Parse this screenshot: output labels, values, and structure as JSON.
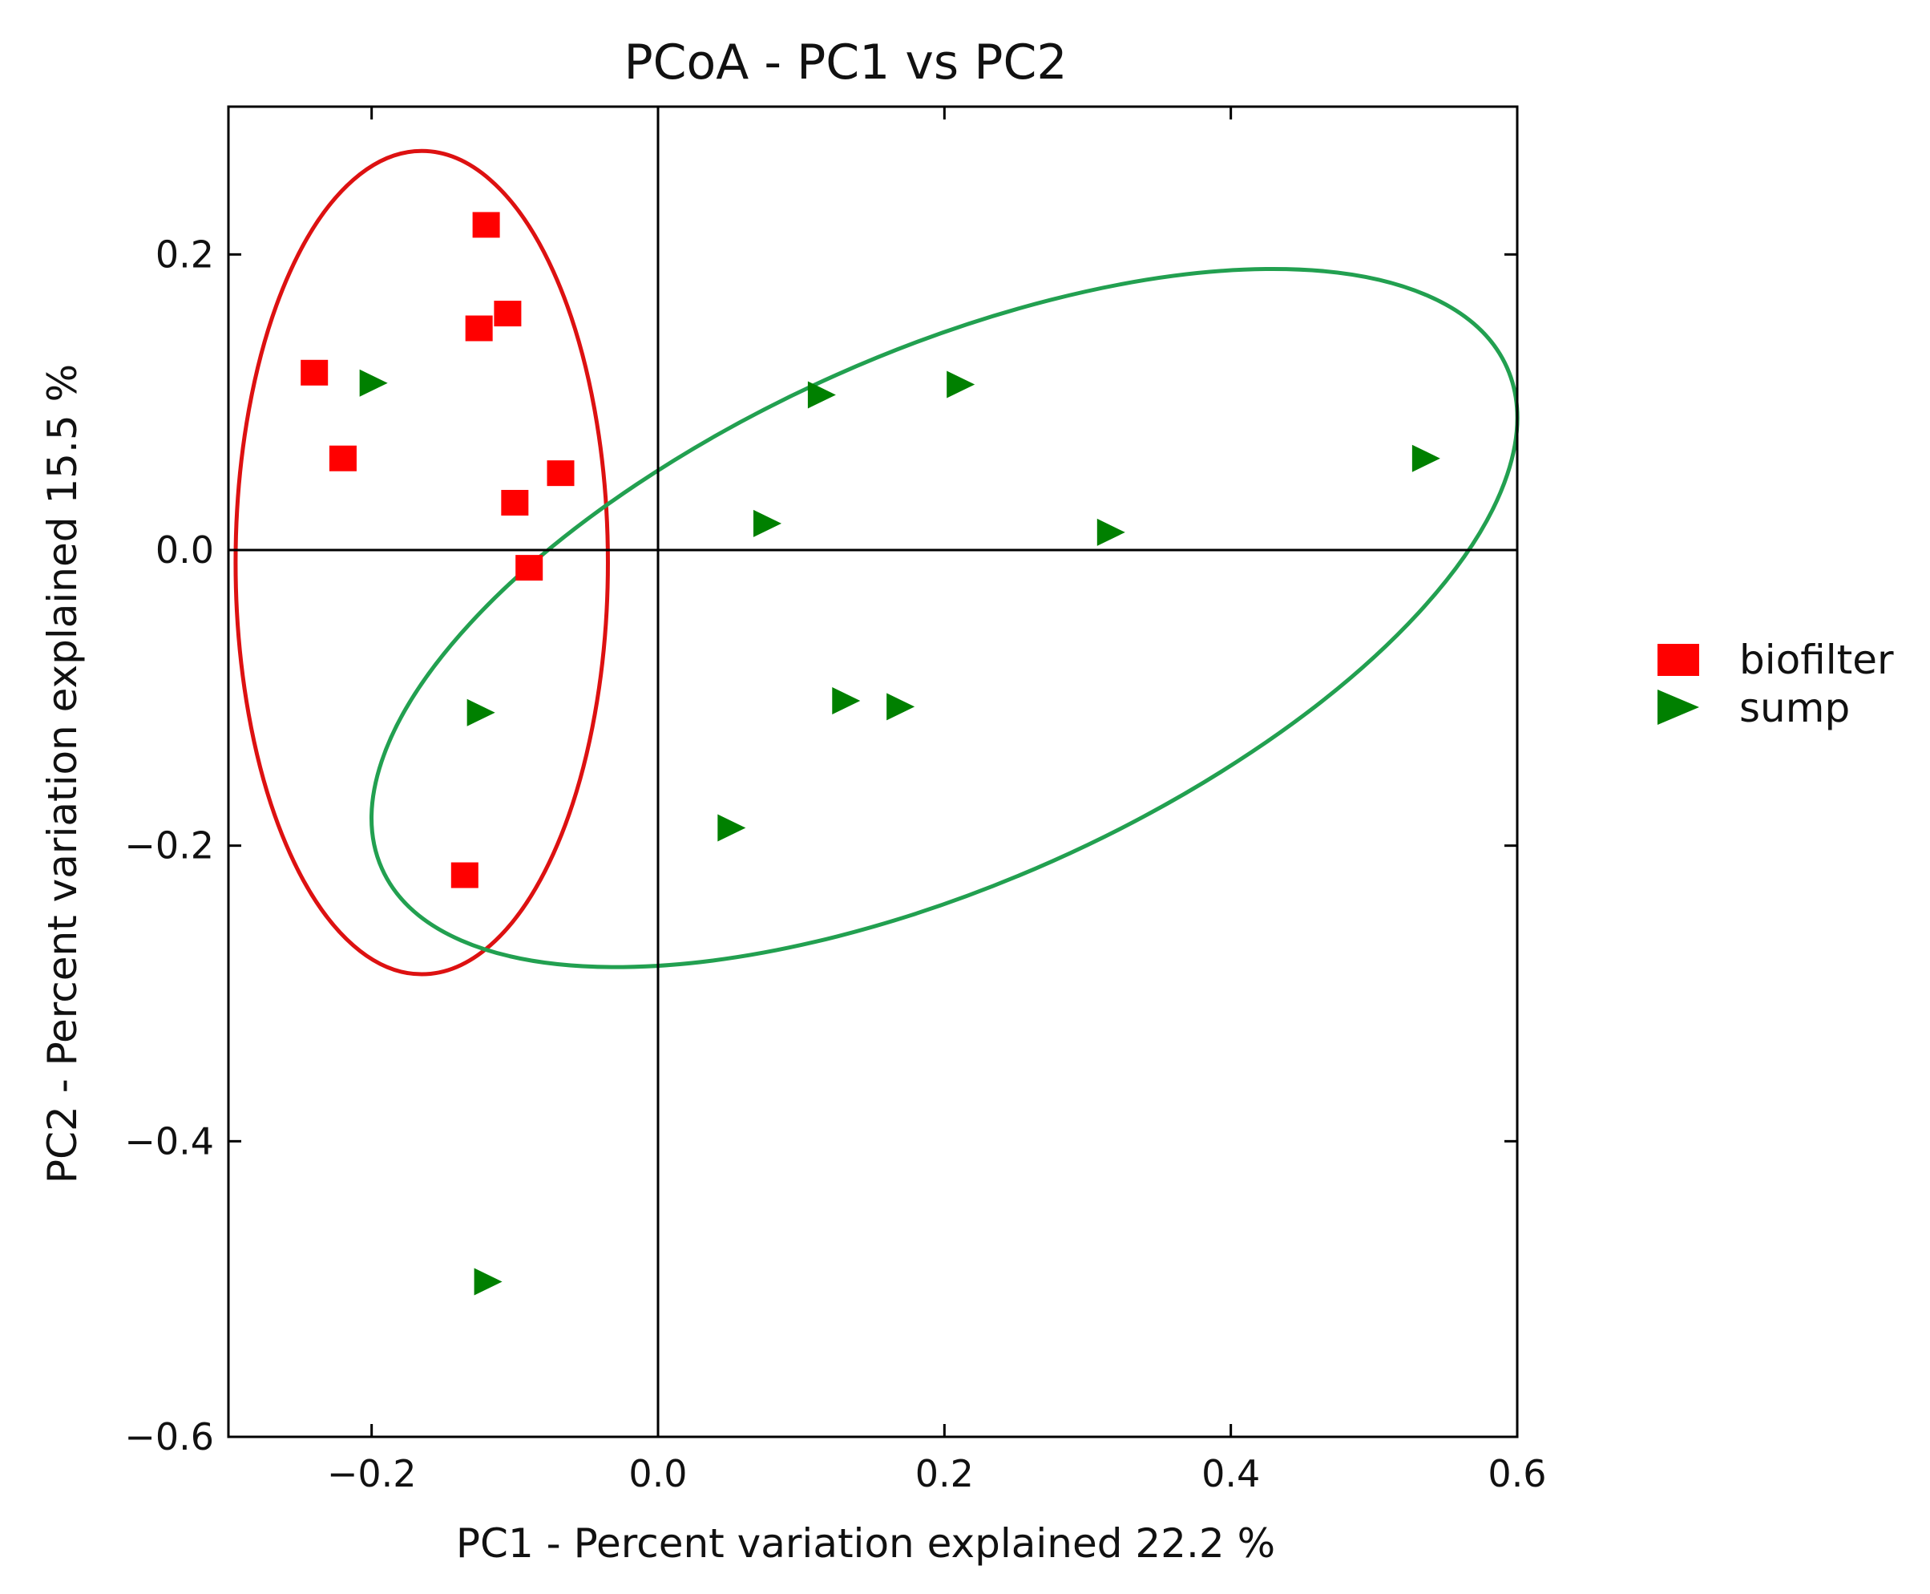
{
  "chart_data": {
    "type": "scatter",
    "title": "PCoA - PC1 vs PC2",
    "xlabel": "PC1 - Percent variation explained 22.2  %",
    "ylabel": "PC2 - Percent variation explained 15.5  %",
    "xlim": [
      -0.3,
      0.6
    ],
    "ylim": [
      -0.6,
      0.3
    ],
    "xticks": [
      -0.2,
      0.0,
      0.2,
      0.4,
      0.6
    ],
    "yticks": [
      -0.6,
      -0.4,
      -0.2,
      0.0,
      0.2
    ],
    "xtick_labels": [
      "−0.2",
      "0.0",
      "0.2",
      "0.4",
      "0.6"
    ],
    "ytick_labels": [
      "−0.6",
      "−0.4",
      "−0.2",
      "0.0",
      "0.2"
    ],
    "grid": false,
    "legend_position": "right",
    "reference_lines": {
      "x": 0.0,
      "y": 0.0
    },
    "series": [
      {
        "name": "biofilter",
        "marker": "square",
        "color": "#ff0000",
        "points": [
          [
            -0.12,
            0.22
          ],
          [
            -0.105,
            0.16
          ],
          [
            -0.125,
            0.15
          ],
          [
            -0.24,
            0.12
          ],
          [
            -0.22,
            0.062
          ],
          [
            -0.068,
            0.052
          ],
          [
            -0.1,
            0.032
          ],
          [
            -0.09,
            -0.012
          ],
          [
            -0.135,
            -0.22
          ]
        ]
      },
      {
        "name": "sump",
        "marker": "triangle-right",
        "color": "#008000",
        "points": [
          [
            -0.2,
            0.113
          ],
          [
            0.113,
            0.105
          ],
          [
            0.21,
            0.112
          ],
          [
            0.535,
            0.062
          ],
          [
            0.075,
            0.018
          ],
          [
            0.315,
            0.012
          ],
          [
            -0.125,
            -0.11
          ],
          [
            0.13,
            -0.102
          ],
          [
            0.168,
            -0.106
          ],
          [
            0.05,
            -0.188
          ],
          [
            -0.12,
            -0.495
          ]
        ]
      }
    ],
    "ellipses": [
      {
        "group": "biofilter",
        "color": "#dd1111",
        "center": [
          -0.165,
          -0.0085
        ],
        "radius_x": 0.13,
        "radius_y": 0.2785,
        "rotation_deg": 0
      },
      {
        "group": "sump",
        "color": "#22a050",
        "center": [
          0.2,
          -0.046
        ],
        "radius_x": 0.43,
        "radius_y": 0.18,
        "rotation_deg": -24
      }
    ]
  }
}
